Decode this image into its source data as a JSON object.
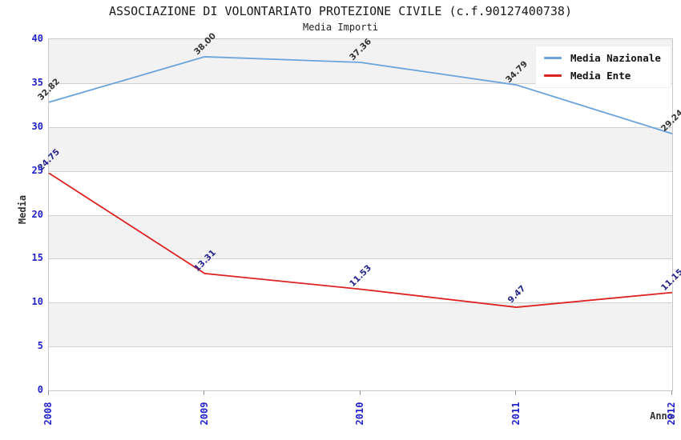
{
  "chart_data": {
    "type": "line",
    "title": "ASSOCIAZIONE DI VOLONTARIATO PROTEZIONE CIVILE (c.f.90127400738)",
    "subtitle": "Media Importi",
    "xlabel": "Anno",
    "ylabel": "Media",
    "x": [
      "2008",
      "2009",
      "2010",
      "2011",
      "2012"
    ],
    "series": [
      {
        "name": "Media Nazionale",
        "values": [
          32.82,
          38.0,
          37.36,
          34.79,
          29.24
        ],
        "color": "#6ba3dc",
        "label_color": "#333333"
      },
      {
        "name": "Media Ente",
        "values": [
          24.75,
          13.31,
          11.53,
          9.47,
          11.15
        ],
        "color": "#dd2222",
        "label_color": "#26268c"
      }
    ],
    "ylim": [
      0,
      40
    ],
    "yticks": [
      0,
      5,
      10,
      15,
      20,
      25,
      30,
      35,
      40
    ],
    "ytick_step": 5,
    "value_label_decimals": 2,
    "legend_position": "top-right",
    "grid": "horizontal-bands",
    "band_colors": [
      "#f2f2f2",
      "#ffffff"
    ],
    "gridline_color": "#d0d0d0",
    "axis_tick_color": "#2222cc",
    "plot_border_color": "#c8c8c8"
  }
}
